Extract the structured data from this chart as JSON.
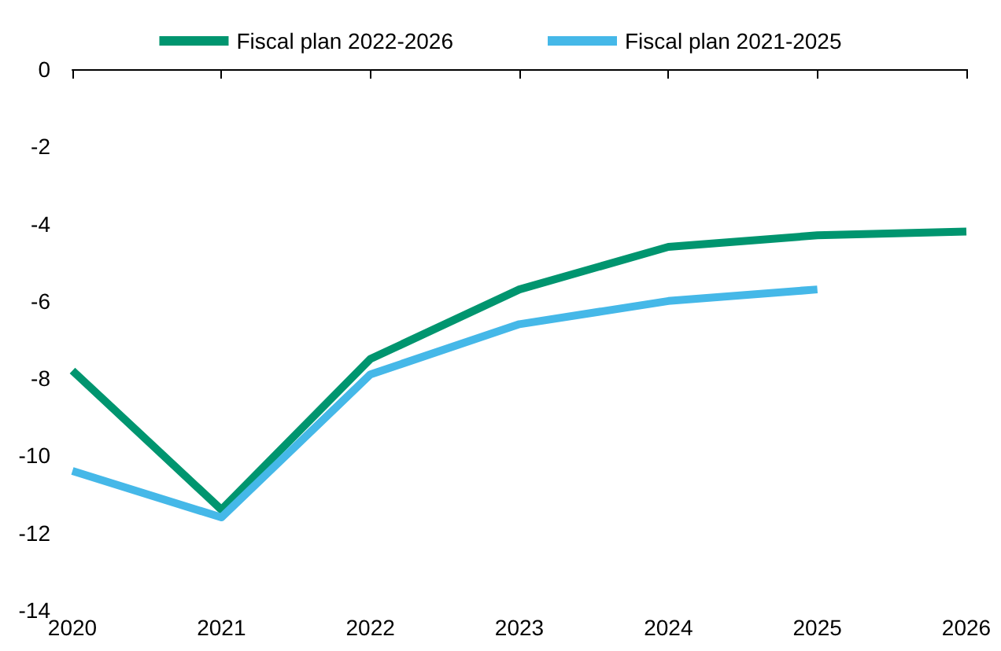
{
  "chart_data": {
    "type": "line",
    "categories": [
      "2020",
      "2021",
      "2022",
      "2023",
      "2024",
      "2025",
      "2026"
    ],
    "series": [
      {
        "name": "Fiscal plan 2022-2026",
        "color": "#00956f",
        "values": [
          -7.8,
          -11.4,
          -7.5,
          -5.7,
          -4.6,
          -4.3,
          -4.2
        ]
      },
      {
        "name": "Fiscal plan 2021-2025",
        "color": "#45b8e8",
        "values": [
          -10.4,
          -11.6,
          -7.9,
          -6.6,
          -6.0,
          -5.7,
          null
        ]
      }
    ],
    "ylim": [
      -14,
      0
    ],
    "yticks": [
      -14,
      -12,
      -10,
      -8,
      -6,
      -4,
      -2,
      0
    ],
    "grid": false,
    "legend": "top",
    "marker": "none",
    "line_style": "solid"
  }
}
